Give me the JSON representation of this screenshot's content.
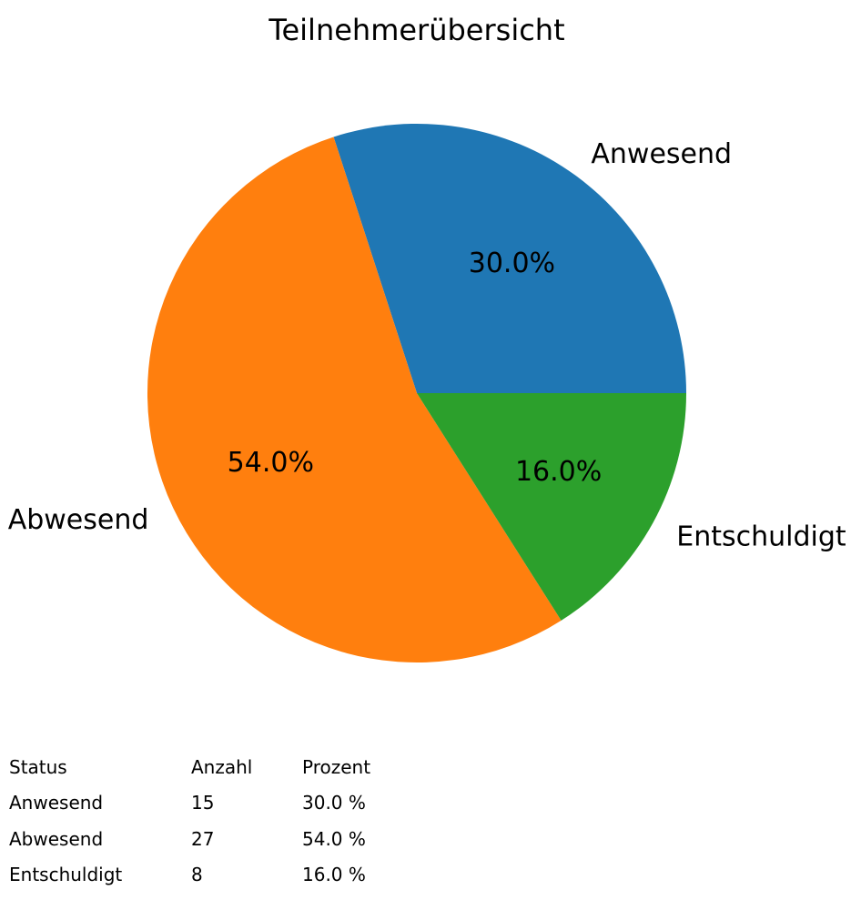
{
  "title": "Teilnehmerübersicht",
  "chart_data": {
    "type": "pie",
    "title": "Teilnehmerübersicht",
    "categories": [
      "Anwesend",
      "Abwesend",
      "Entschuldigt"
    ],
    "values": [
      15,
      27,
      8
    ],
    "percentages": [
      30.0,
      54.0,
      16.0
    ],
    "percent_labels": [
      "30.0%",
      "54.0%",
      "16.0%"
    ],
    "colors": [
      "#1f77b4",
      "#ff7f0e",
      "#2ca02c"
    ],
    "start_angle": 0,
    "counterclockwise": true,
    "label_distance": 1.1,
    "pct_distance": 0.6,
    "legend": "none"
  },
  "table": {
    "headers": [
      "Status",
      "Anzahl",
      "Prozent"
    ],
    "rows": [
      [
        "Anwesend",
        "15",
        "30.0 %"
      ],
      [
        "Abwesend",
        "27",
        "54.0 %"
      ],
      [
        "Entschuldigt",
        "8",
        "16.0 %"
      ]
    ]
  }
}
